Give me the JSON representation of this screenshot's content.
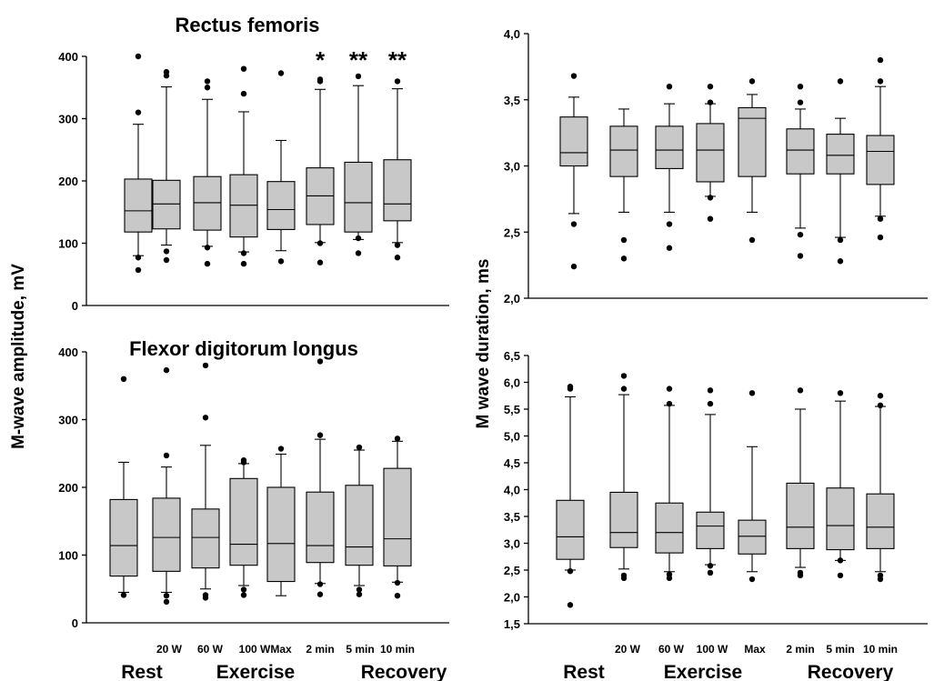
{
  "shared": {
    "categories": [
      "Rest",
      "20 W",
      "60 W",
      "100 W",
      "Max",
      "2 min",
      "5 min",
      "10 min"
    ],
    "group_labels": [
      "Rest",
      "Exercise",
      "Recovery"
    ],
    "left_ylabel": "M-wave amplitude, mV",
    "right_ylabel": "M wave duration, ms"
  },
  "chart_data": [
    {
      "type": "box",
      "panel": "top-left",
      "title": "Rectus femoris",
      "ylim": [
        0,
        400
      ],
      "yticks": [
        0,
        100,
        200,
        300,
        400
      ],
      "ytick_labels": [
        "0",
        "100",
        "200",
        "300",
        "400"
      ],
      "series": [
        {
          "category": "Rest",
          "whisker_low": 80,
          "q1": 118,
          "median": 152,
          "q3": 203,
          "whisker_high": 291,
          "outliers": [
            57,
            77,
            310,
            400
          ]
        },
        {
          "category": "20 W",
          "whisker_low": 97,
          "q1": 123,
          "median": 163,
          "q3": 201,
          "whisker_high": 351,
          "outliers": [
            73,
            87,
            369,
            375
          ]
        },
        {
          "category": "60 W",
          "whisker_low": 95,
          "q1": 121,
          "median": 165,
          "q3": 207,
          "whisker_high": 331,
          "outliers": [
            67,
            93,
            350,
            360
          ]
        },
        {
          "category": "100 W",
          "whisker_low": 86,
          "q1": 110,
          "median": 161,
          "q3": 210,
          "whisker_high": 311,
          "outliers": [
            67,
            84,
            340,
            380
          ]
        },
        {
          "category": "Max",
          "whisker_low": 88,
          "q1": 122,
          "median": 154,
          "q3": 199,
          "whisker_high": 265,
          "outliers": [
            71,
            373
          ]
        },
        {
          "category": "2 min",
          "whisker_low": 101,
          "q1": 130,
          "median": 176,
          "q3": 221,
          "whisker_high": 347,
          "outliers": [
            69,
            100,
            360,
            363
          ]
        },
        {
          "category": "5 min",
          "whisker_low": 106,
          "q1": 118,
          "median": 165,
          "q3": 230,
          "whisker_high": 353,
          "outliers": [
            84,
            108,
            368
          ]
        },
        {
          "category": "10 min",
          "whisker_low": 101,
          "q1": 136,
          "median": 163,
          "q3": 234,
          "whisker_high": 348,
          "outliers": [
            77,
            97,
            360
          ]
        }
      ],
      "significance": [
        {
          "category": "2 min",
          "text": "*"
        },
        {
          "category": "5 min",
          "text": "**"
        },
        {
          "category": "10 min",
          "text": "**"
        }
      ]
    },
    {
      "type": "box",
      "panel": "bottom-left",
      "title": "Flexor digitorum longus",
      "ylim": [
        0,
        400
      ],
      "yticks": [
        0,
        100,
        200,
        300,
        400
      ],
      "ytick_labels": [
        "0",
        "100",
        "200",
        "300",
        "400"
      ],
      "series": [
        {
          "category": "Rest",
          "whisker_low": 45,
          "q1": 69,
          "median": 114,
          "q3": 182,
          "whisker_high": 237,
          "outliers": [
            41,
            360
          ]
        },
        {
          "category": "20 W",
          "whisker_low": 45,
          "q1": 76,
          "median": 126,
          "q3": 184,
          "whisker_high": 230,
          "outliers": [
            31,
            40,
            247,
            373
          ]
        },
        {
          "category": "60 W",
          "whisker_low": 50,
          "q1": 81,
          "median": 126,
          "q3": 168,
          "whisker_high": 262,
          "outliers": [
            37,
            41,
            303,
            380
          ]
        },
        {
          "category": "100 W",
          "whisker_low": 55,
          "q1": 85,
          "median": 116,
          "q3": 213,
          "whisker_high": 235,
          "outliers": [
            41,
            49,
            237,
            240
          ]
        },
        {
          "category": "Max",
          "whisker_low": 40,
          "q1": 61,
          "median": 117,
          "q3": 200,
          "whisker_high": 249,
          "outliers": [
            257
          ]
        },
        {
          "category": "2 min",
          "whisker_low": 58,
          "q1": 89,
          "median": 114,
          "q3": 193,
          "whisker_high": 271,
          "outliers": [
            42,
            57,
            277,
            386
          ]
        },
        {
          "category": "5 min",
          "whisker_low": 55,
          "q1": 85,
          "median": 112,
          "q3": 203,
          "whisker_high": 255,
          "outliers": [
            42,
            49,
            259
          ]
        },
        {
          "category": "10 min",
          "whisker_low": 60,
          "q1": 84,
          "median": 124,
          "q3": 228,
          "whisker_high": 268,
          "outliers": [
            40,
            59,
            272
          ]
        }
      ]
    },
    {
      "type": "box",
      "panel": "top-right",
      "ylim": [
        2.0,
        4.0
      ],
      "yticks": [
        2.0,
        2.5,
        3.0,
        3.5,
        4.0
      ],
      "ytick_labels": [
        "2,0",
        "2,5",
        "3,0",
        "3,5",
        "4,0"
      ],
      "series": [
        {
          "category": "Rest",
          "whisker_low": 2.64,
          "q1": 3.0,
          "median": 3.1,
          "q3": 3.37,
          "whisker_high": 3.52,
          "outliers": [
            2.24,
            2.56,
            3.68
          ]
        },
        {
          "category": "20 W",
          "whisker_low": 2.65,
          "q1": 2.92,
          "median": 3.12,
          "q3": 3.3,
          "whisker_high": 3.43,
          "outliers": [
            2.3,
            2.44
          ]
        },
        {
          "category": "60 W",
          "whisker_low": 2.65,
          "q1": 2.98,
          "median": 3.12,
          "q3": 3.3,
          "whisker_high": 3.47,
          "outliers": [
            2.38,
            2.56,
            3.6
          ]
        },
        {
          "category": "100 W",
          "whisker_low": 2.77,
          "q1": 2.88,
          "median": 3.12,
          "q3": 3.32,
          "whisker_high": 3.47,
          "outliers": [
            2.6,
            2.76,
            3.48,
            3.6
          ]
        },
        {
          "category": "Max",
          "whisker_low": 2.65,
          "q1": 2.92,
          "median": 3.36,
          "q3": 3.44,
          "whisker_high": 3.54,
          "outliers": [
            2.44,
            3.64
          ]
        },
        {
          "category": "2 min",
          "whisker_low": 2.53,
          "q1": 2.94,
          "median": 3.12,
          "q3": 3.28,
          "whisker_high": 3.43,
          "outliers": [
            2.32,
            2.48,
            3.48,
            3.6
          ]
        },
        {
          "category": "5 min",
          "whisker_low": 2.46,
          "q1": 2.94,
          "median": 3.08,
          "q3": 3.24,
          "whisker_high": 3.36,
          "outliers": [
            2.28,
            2.44,
            3.64
          ]
        },
        {
          "category": "10 min",
          "whisker_low": 2.62,
          "q1": 2.86,
          "median": 3.11,
          "q3": 3.23,
          "whisker_high": 3.6,
          "outliers": [
            2.46,
            2.6,
            3.64,
            3.8
          ]
        }
      ]
    },
    {
      "type": "box",
      "panel": "bottom-right",
      "ylim": [
        1.5,
        6.5
      ],
      "yticks": [
        1.5,
        2.0,
        2.5,
        3.0,
        3.5,
        4.0,
        4.5,
        5.0,
        5.5,
        6.0,
        6.5
      ],
      "ytick_labels": [
        "1,5",
        "2,0",
        "2,5",
        "3,0",
        "3,5",
        "4,0",
        "4,5",
        "5,0",
        "5,5",
        "6,0",
        "6,5"
      ],
      "series": [
        {
          "category": "Rest",
          "whisker_low": 2.5,
          "q1": 2.7,
          "median": 3.12,
          "q3": 3.8,
          "whisker_high": 5.73,
          "outliers": [
            1.85,
            2.48,
            5.88,
            5.92
          ]
        },
        {
          "category": "20 W",
          "whisker_low": 2.52,
          "q1": 2.92,
          "median": 3.2,
          "q3": 3.95,
          "whisker_high": 5.77,
          "outliers": [
            2.35,
            2.4,
            5.88,
            6.12
          ]
        },
        {
          "category": "60 W",
          "whisker_low": 2.47,
          "q1": 2.82,
          "median": 3.2,
          "q3": 3.75,
          "whisker_high": 5.57,
          "outliers": [
            2.35,
            2.42,
            5.6,
            5.88
          ]
        },
        {
          "category": "100 W",
          "whisker_low": 2.6,
          "q1": 2.9,
          "median": 3.32,
          "q3": 3.58,
          "whisker_high": 5.4,
          "outliers": [
            2.45,
            2.58,
            5.6,
            5.85
          ]
        },
        {
          "category": "Max",
          "whisker_low": 2.47,
          "q1": 2.8,
          "median": 3.13,
          "q3": 3.43,
          "whisker_high": 4.8,
          "outliers": [
            2.33,
            5.8
          ]
        },
        {
          "category": "2 min",
          "whisker_low": 2.55,
          "q1": 2.9,
          "median": 3.3,
          "q3": 4.12,
          "whisker_high": 5.5,
          "outliers": [
            2.4,
            2.45,
            5.85
          ]
        },
        {
          "category": "5 min",
          "whisker_low": 2.68,
          "q1": 2.88,
          "median": 3.33,
          "q3": 4.03,
          "whisker_high": 5.65,
          "outliers": [
            2.4,
            2.68,
            5.8
          ]
        },
        {
          "category": "10 min",
          "whisker_low": 2.47,
          "q1": 2.9,
          "median": 3.3,
          "q3": 3.92,
          "whisker_high": 5.55,
          "outliers": [
            2.33,
            2.4,
            5.57,
            5.75
          ]
        }
      ]
    }
  ]
}
